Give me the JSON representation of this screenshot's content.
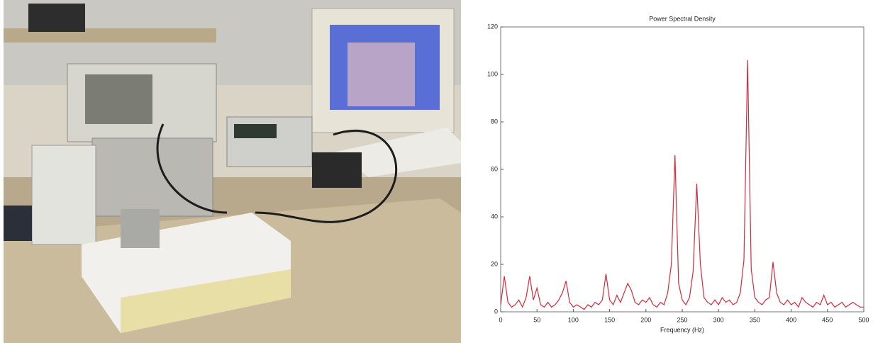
{
  "chart_data": {
    "type": "line",
    "title": "Power Spectral Density",
    "x_label": "Frequency (Hz)",
    "x": [
      0,
      5,
      10,
      15,
      20,
      25,
      30,
      35,
      40,
      45,
      50,
      55,
      60,
      65,
      70,
      75,
      80,
      85,
      90,
      95,
      100,
      105,
      110,
      115,
      120,
      125,
      130,
      135,
      140,
      145,
      150,
      155,
      160,
      165,
      170,
      175,
      180,
      185,
      190,
      195,
      200,
      205,
      210,
      215,
      220,
      225,
      230,
      235,
      240,
      245,
      250,
      255,
      260,
      265,
      270,
      275,
      280,
      285,
      290,
      295,
      300,
      305,
      310,
      315,
      320,
      325,
      330,
      335,
      340,
      345,
      350,
      355,
      360,
      365,
      370,
      375,
      380,
      385,
      390,
      395,
      400,
      405,
      410,
      415,
      420,
      425,
      430,
      435,
      440,
      445,
      450,
      455,
      460,
      465,
      470,
      475,
      480,
      485,
      490,
      495,
      500
    ],
    "series": [
      {
        "color": "#d42a3a",
        "values": [
          3,
          15,
          4,
          2,
          3,
          5,
          2,
          6,
          15,
          5,
          10,
          3,
          2,
          4,
          2,
          3,
          5,
          8,
          13,
          4,
          2,
          3,
          2,
          1,
          3,
          2,
          4,
          3,
          5,
          16,
          5,
          3,
          7,
          4,
          8,
          12,
          9,
          4,
          3,
          5,
          4,
          6,
          3,
          2,
          4,
          3,
          8,
          20,
          66,
          12,
          5,
          3,
          6,
          17,
          54,
          20,
          6,
          4,
          3,
          5,
          3,
          6,
          4,
          5,
          3,
          4,
          8,
          22,
          106,
          18,
          6,
          4,
          3,
          5,
          6,
          21,
          8,
          4,
          3,
          5,
          3,
          4,
          2,
          6,
          4,
          3,
          2,
          4,
          3,
          7,
          3,
          4,
          2,
          3,
          4,
          2,
          3,
          4,
          3,
          2,
          2
        ]
      }
    ],
    "xlim": [
      0,
      500
    ],
    "xticks": [
      0,
      50,
      100,
      150,
      200,
      250,
      300,
      350,
      400,
      450,
      500
    ],
    "ylim": [
      0,
      120
    ],
    "yticks": [
      0,
      20,
      40,
      60,
      80,
      100,
      120
    ],
    "grid": false
  }
}
